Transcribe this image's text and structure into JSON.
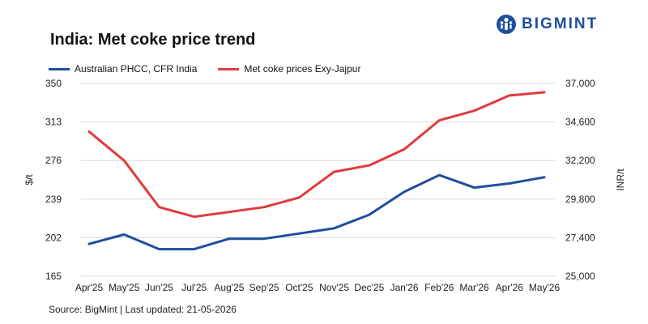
{
  "header": {
    "title": "India: Met coke price trend",
    "brand": "BIGMINT"
  },
  "legend": {
    "items": [
      {
        "label": "Australian PHCC, CFR India",
        "color": "#1f4e9c"
      },
      {
        "label": "Met coke prices Exy-Jajpur",
        "color": "#e03a3e"
      }
    ]
  },
  "footer": {
    "source": "Source: BigMint | Last updated: 21-05-2026"
  },
  "chart_data": {
    "type": "line",
    "title": "India: Met coke price trend",
    "categories": [
      "Apr'25",
      "May'25",
      "Jun'25",
      "Jul'25",
      "Aug'25",
      "Sep'25",
      "Oct'25",
      "Nov'25",
      "Dec'25",
      "Jan'26",
      "Feb'26",
      "Mar'26",
      "Apr'26",
      "May'26"
    ],
    "left_axis": {
      "label": "$/t",
      "range": [
        165,
        350
      ],
      "ticks": [
        "350",
        "313",
        "276",
        "239",
        "202",
        "165"
      ]
    },
    "right_axis": {
      "label": "INR/t",
      "range": [
        25000,
        37000
      ],
      "ticks": [
        "37,000",
        "34,600",
        "32,200",
        "29,800",
        "27,400",
        "25,000"
      ]
    },
    "grid": true,
    "legend_position": "top-left",
    "series": [
      {
        "name": "Australian PHCC, CFR India",
        "axis": "left",
        "color": "#1f4e9c",
        "values": [
          196,
          205,
          191,
          191,
          201,
          201,
          206,
          211,
          224,
          246,
          262,
          250,
          254,
          260
        ]
      },
      {
        "name": "Met coke prices Exy-Jajpur",
        "axis": "right",
        "color": "#e03a3e",
        "values": [
          34000,
          32200,
          29300,
          28700,
          29000,
          29300,
          29900,
          31500,
          31900,
          32900,
          34700,
          35300,
          36250,
          36450
        ]
      }
    ]
  }
}
